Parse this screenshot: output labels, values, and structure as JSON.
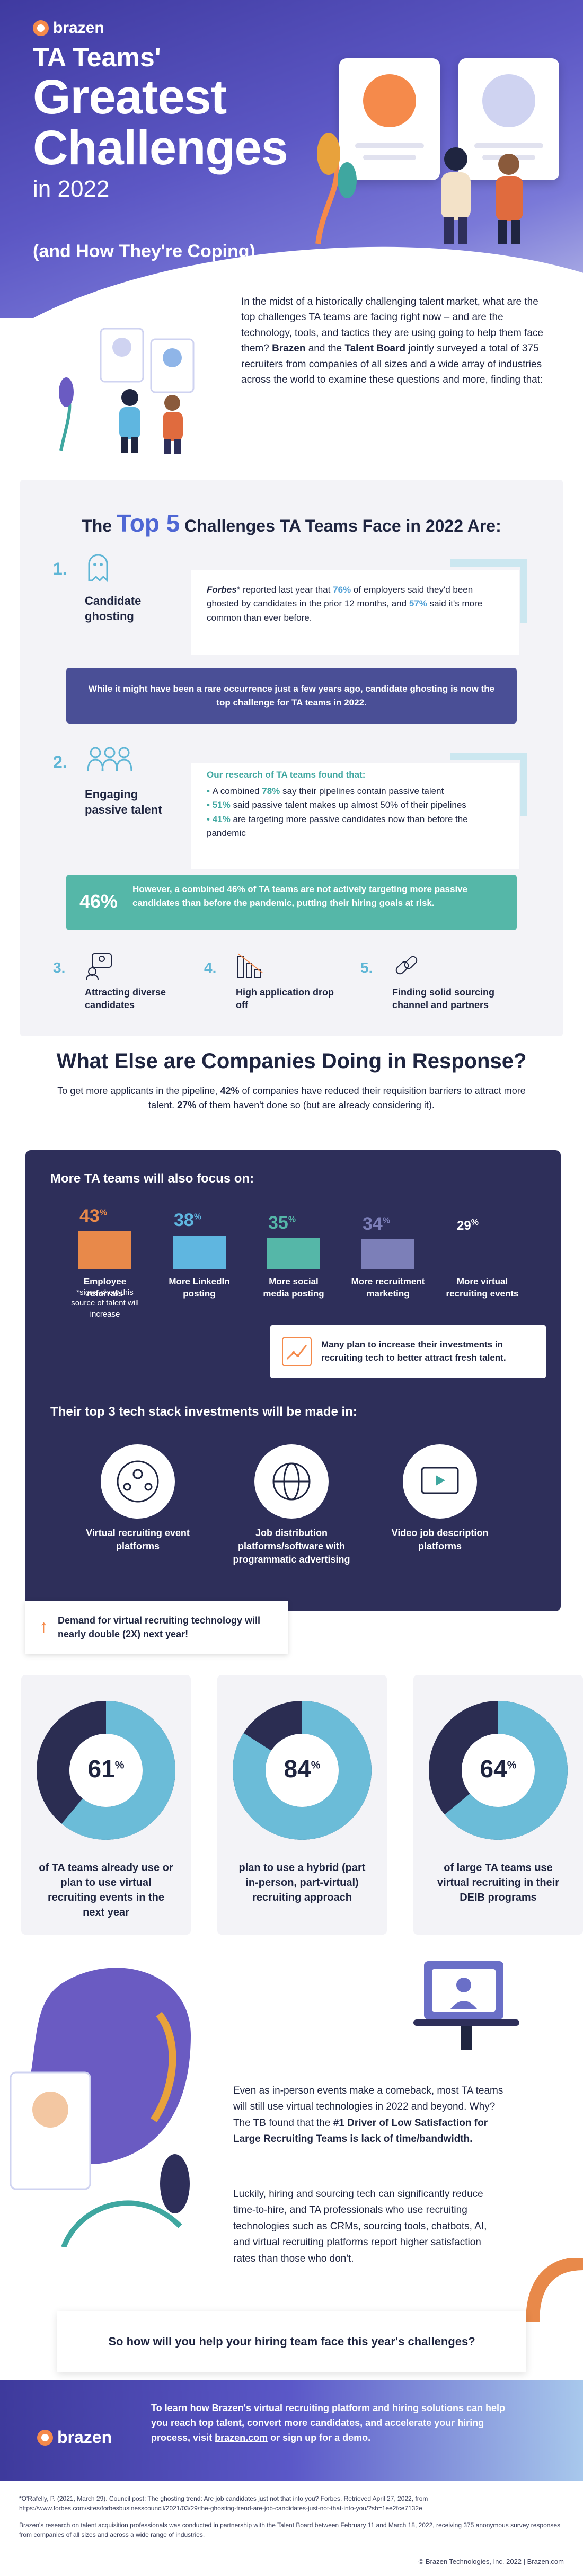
{
  "brand": {
    "name": "brazen",
    "accent": "#f58a4b",
    "primary": "#4f67d4",
    "dark": "#2e2f5a",
    "teal": "#3fa7a0"
  },
  "hero": {
    "line1": "TA Teams'",
    "line2a": "Greatest",
    "line2b": "Challenges",
    "line3": "in 2022",
    "line4": "(and How They're Coping)"
  },
  "intro": {
    "p1": "In the midst of a historically challenging talent market, what are the top challenges TA teams are facing right now – and are the technology, tools, and tactics they are using going to help them face them? ",
    "link1": "Brazen",
    "p2": " and the ",
    "link2": "Talent Board",
    "p3": " jointly surveyed a total of 375 recruiters from companies of all sizes and a wide array of industries across the world to examine these questions and more, finding that:"
  },
  "top5": {
    "title_pre": "The ",
    "title_hl": "Top 5",
    "title_post": " Challenges TA Teams Face in 2022 Are:",
    "c1": {
      "num": "1.",
      "label": "Candidate ghosting",
      "q_src": "Forbes",
      "q_a": "* reported last year that ",
      "q_pct1": "76%",
      "q_b": " of employers said they'd been ghosted by candidates in the prior 12 months, and ",
      "q_pct2": "57%",
      "q_c": " said it's more common than ever before.",
      "banner": "While it might have been a rare occurrence just a few years ago, candidate ghosting is now the top challenge for TA teams in 2022."
    },
    "c2": {
      "num": "2.",
      "label": "Engaging passive talent",
      "head": "Our research of TA teams found that:",
      "b1_pre": "A combined ",
      "b1_pct": "78%",
      "b1_post": " say their pipelines contain passive talent",
      "b2_pct": "51%",
      "b2_post": " said passive talent makes up almost 50% of their pipelines",
      "b3_pct": "41%",
      "b3_post": " are targeting more passive candidates now than before the pandemic",
      "banner_pct": "46%",
      "banner_text_a": "However, a combined 46% of TA teams are ",
      "banner_not": "not",
      "banner_text_b": " actively targeting more passive candidates than before the pandemic, putting their hiring goals at risk."
    },
    "c3": {
      "num": "3.",
      "label": "Attracting diverse candidates"
    },
    "c4": {
      "num": "4.",
      "label": "High application drop off"
    },
    "c5": {
      "num": "5.",
      "label": "Finding solid sourcing channel and partners"
    }
  },
  "response": {
    "title": "What Else are Companies Doing in Response?",
    "sub_a": "To get more applicants in the pipeline, ",
    "sub_pct1": "42%",
    "sub_b": " of companies have reduced their requisition barriers to attract more talent. ",
    "sub_pct2": "27%",
    "sub_c": " of them haven't done so (but are already considering it)."
  },
  "focus": {
    "title": "More TA teams will also focus on:",
    "pct_sign": "%",
    "items": [
      {
        "pct": "43",
        "label": "Employee referrals",
        "note": "*signs show this source of talent will increase",
        "color": "#e8894a"
      },
      {
        "pct": "38",
        "label": "More LinkedIn posting",
        "note": "",
        "color": "#5fb6e0"
      },
      {
        "pct": "35",
        "label": "More social media posting",
        "note": "",
        "color": "#55b7a8"
      },
      {
        "pct": "34",
        "label": "More recruitment marketing",
        "note": "",
        "color": "#7c7fb8"
      },
      {
        "pct": "29",
        "label": "More virtual recruiting events",
        "note": "",
        "color": "#ffffff"
      }
    ],
    "chart_data": {
      "type": "bar",
      "categories": [
        "Employee referrals",
        "More LinkedIn posting",
        "More social media posting",
        "More recruitment marketing",
        "More virtual recruiting events"
      ],
      "values": [
        43,
        38,
        35,
        34,
        29
      ]
    },
    "tip": "Many plan to increase their investments in recruiting tech to better attract fresh talent."
  },
  "tech": {
    "title": "Their top 3 tech stack investments will be made in:",
    "items": [
      {
        "label": "Virtual recruiting event platforms",
        "icon": "people-network-icon"
      },
      {
        "label": "Job distribution platforms/software with programmatic advertising",
        "icon": "globe-icon"
      },
      {
        "label": "Video job description platforms",
        "icon": "video-player-icon"
      }
    ],
    "demand": "Demand for virtual recruiting technology will nearly double (2X) next year!"
  },
  "donuts": [
    {
      "pct": 61,
      "label": "of TA teams already use or plan to use virtual recruiting events in the next year"
    },
    {
      "pct": 84,
      "label": "plan to use a hybrid (part in-person, part-virtual) recruiting approach"
    },
    {
      "pct": 64,
      "label": "of large TA teams use virtual recruiting in their DEIB programs"
    }
  ],
  "closing": {
    "p1_a": "Even as in-person events make a comeback, most TA teams will still use virtual technologies in 2022 and beyond. Why? The TB found that the ",
    "p1_b": "#1 Driver of Low Satisfaction for Large Recruiting Teams is lack of time/bandwidth.",
    "p2": "Luckily, hiring and sourcing tech can significantly reduce time-to-hire, and TA professionals who use recruiting technologies such as CRMs, sourcing tools, chatbots, AI, and virtual recruiting platforms report higher satisfaction rates than those who don't.",
    "question": "So how will you help your hiring team face this year's challenges?"
  },
  "footer": {
    "text_a": "To learn how Brazen's virtual recruiting platform and hiring solutions can help you reach top talent, convert more candidates, and accelerate your hiring process, visit ",
    "link": "brazen.com",
    "text_b": " or sign up for a demo.",
    "cite1": "*O'Rafelly, P. (2021, March 29). Council post: The ghosting trend: Are job candidates just not that into you? Forbes. Retrieved April 27, 2022, from https://www.forbes.com/sites/forbesbusinesscouncil/2021/03/29/the-ghosting-trend-are-job-candidates-just-not-that-into-you/?sh=1ee2fce7132e",
    "cite2": "Brazen's research on talent acquisition professionals was conducted in partnership with the Talent Board between February 11 and March 18, 2022, receiving 375 anonymous survey responses from companies of all sizes and across a wide range of industries.",
    "copyright": "© Brazen Technologies, Inc. 2022 | Brazen.com"
  }
}
